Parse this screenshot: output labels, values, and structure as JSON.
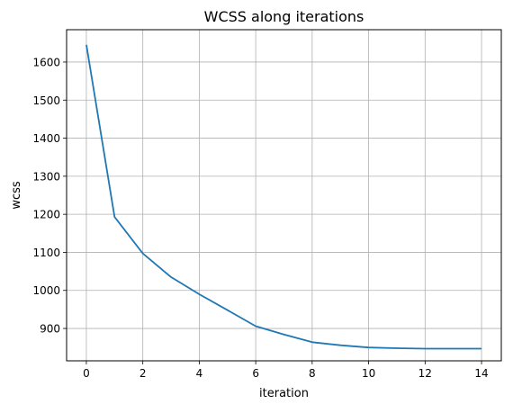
{
  "chart_data": {
    "type": "line",
    "title": "WCSS along iterations",
    "xlabel": "iteration",
    "ylabel": "wcss",
    "xlim": [
      -0.7,
      14.7
    ],
    "ylim": [
      815,
      1685
    ],
    "xticks": [
      0,
      2,
      4,
      6,
      8,
      10,
      12,
      14
    ],
    "yticks": [
      900,
      1000,
      1100,
      1200,
      1300,
      1400,
      1500,
      1600
    ],
    "grid": true,
    "series": [
      {
        "color": "#1f77b4",
        "x": [
          0,
          1,
          2,
          3,
          4,
          5,
          6,
          7,
          8,
          9,
          10,
          11,
          12,
          13,
          14
        ],
        "y": [
          1645,
          1193,
          1097,
          1035,
          990,
          948,
          906,
          884,
          864,
          856,
          850,
          848,
          847,
          847,
          847
        ]
      }
    ]
  }
}
